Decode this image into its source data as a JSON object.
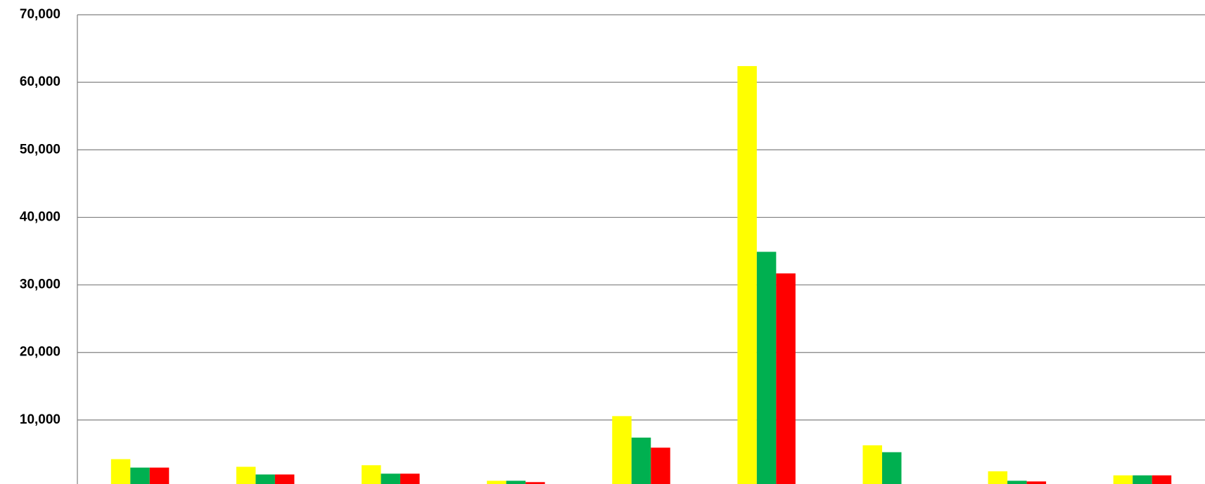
{
  "chart_data": {
    "type": "bar",
    "categories": [
      null,
      null,
      null,
      null,
      null,
      null,
      null,
      null,
      null
    ],
    "series": [
      {
        "color": "#ffff00",
        "values": [
          4200,
          3070,
          3300,
          1000,
          10570,
          62400,
          6250,
          2400,
          1800
        ]
      },
      {
        "color": "#00b050",
        "values": [
          2950,
          1930,
          2050,
          1000,
          7390,
          34900,
          5230,
          1000,
          1800
        ]
      },
      {
        "color": "#ff0000",
        "values": [
          2950,
          1930,
          2050,
          800,
          5900,
          31700,
          400,
          900,
          1800
        ]
      }
    ],
    "ylim": [
      0,
      70000
    ],
    "yticks": [
      {
        "value": 10000,
        "label": "10,000"
      },
      {
        "value": 20000,
        "label": "20,000"
      },
      {
        "value": 30000,
        "label": "30,000"
      },
      {
        "value": 40000,
        "label": "40,000"
      },
      {
        "value": 50000,
        "label": "50,000"
      },
      {
        "value": 60000,
        "label": "60,000"
      },
      {
        "value": 70000,
        "label": "70,000"
      }
    ],
    "grid": true
  }
}
